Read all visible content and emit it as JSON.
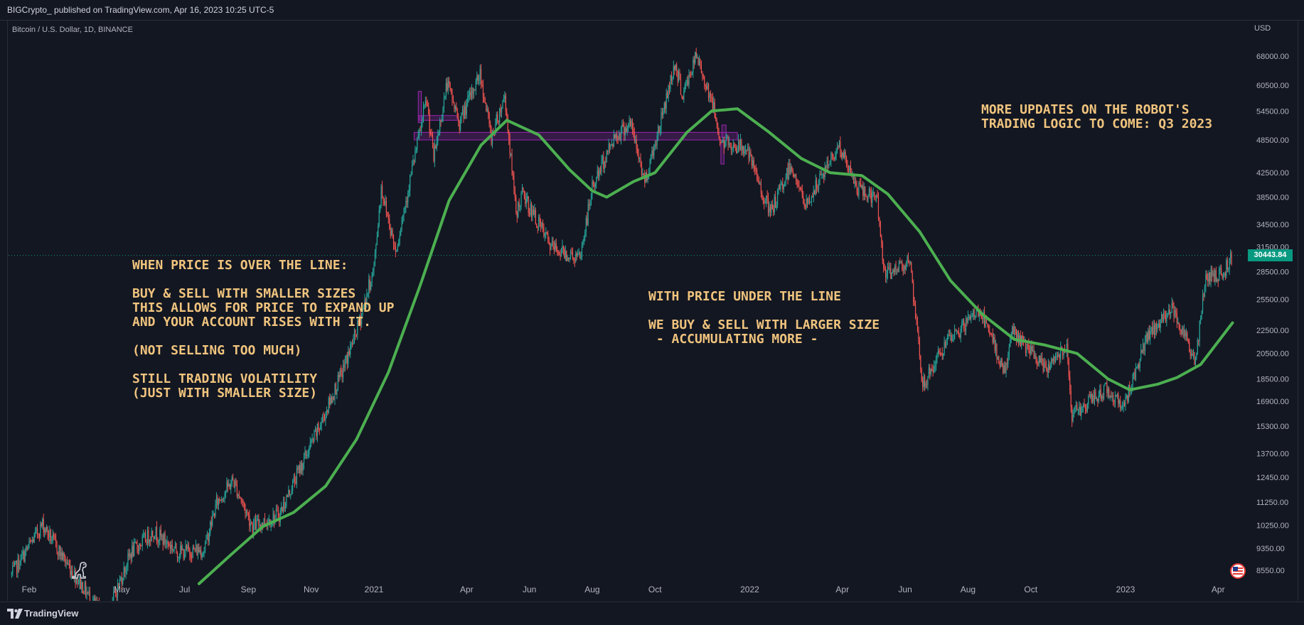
{
  "header": {
    "published_by": "BIGCrypto_ published on TradingView.com, Apr 16, 2023 10:25 UTC-5"
  },
  "chart_header": {
    "symbol": "Bitcoin / U.S. Dollar, 1D, BINANCE",
    "currency": "USD"
  },
  "footer": {
    "brand": "TradingView",
    "logo_icon": "tradingview-logo-icon"
  },
  "icons": {
    "bottom_left": "dinosaur-icon",
    "bottom_right": "us-flag-icon"
  },
  "annotations": {
    "left_box": "WHEN PRICE IS OVER THE LINE:\n\nBUY & SELL WITH SMALLER SIZES\nTHIS ALLOWS FOR PRICE TO EXPAND UP\nAND YOUR ACCOUNT RISES WITH IT.\n\n(NOT SELLING TOO MUCH)\n\nSTILL TRADING VOLATILITY\n(JUST WITH SMALLER SIZE)",
    "middle_box": "WITH PRICE UNDER THE LINE\n\nWE BUY & SELL WITH LARGER SIZE\n - ACCUMULATING MORE -",
    "right_box": "MORE UPDATES ON THE ROBOT'S\nTRADING LOGIC TO COME: Q3 2023"
  },
  "colors": {
    "background": "#131722",
    "up_candle": "#26a69a",
    "down_candle": "#ef5350",
    "moving_average": "#4caf50",
    "annotation_text": "#f0c47e",
    "zone_outline": "#9c27b0",
    "last_price_badge": "#089981"
  },
  "chart_data": {
    "type": "candlestick",
    "title": "Bitcoin / U.S. Dollar, 1D, BINANCE",
    "y_scale": "log",
    "ylim": [
      8000,
      72000
    ],
    "y_ticks": [
      68000,
      60500,
      54500,
      48500,
      42500,
      38500,
      34500,
      31500,
      28500,
      25500,
      22500,
      20500,
      18500,
      16900,
      15300,
      13700,
      12450,
      11250,
      10250,
      9350,
      8550
    ],
    "y_tick_labels": [
      "68000.00",
      "60500.00",
      "54500.00",
      "48500.00",
      "42500.00",
      "38500.00",
      "34500.00",
      "31500.00",
      "28500.00",
      "25500.00",
      "22500.00",
      "20500.00",
      "18500.00",
      "16900.00",
      "15300.00",
      "13700.00",
      "12450.00",
      "11250.00",
      "10250.00",
      "9350.00",
      "8550.00"
    ],
    "x_labels": [
      {
        "label": "Feb",
        "date": "2020-02-01"
      },
      {
        "label": "May",
        "date": "2020-05-01"
      },
      {
        "label": "Jul",
        "date": "2020-07-01"
      },
      {
        "label": "Sep",
        "date": "2020-09-01"
      },
      {
        "label": "Nov",
        "date": "2020-11-01"
      },
      {
        "label": "2021",
        "date": "2021-01-01"
      },
      {
        "label": "Apr",
        "date": "2021-04-01"
      },
      {
        "label": "Jun",
        "date": "2021-06-01"
      },
      {
        "label": "Aug",
        "date": "2021-08-01"
      },
      {
        "label": "Oct",
        "date": "2021-10-01"
      },
      {
        "label": "2022",
        "date": "2022-01-01"
      },
      {
        "label": "Apr",
        "date": "2022-04-01"
      },
      {
        "label": "Jun",
        "date": "2022-06-01"
      },
      {
        "label": "Aug",
        "date": "2022-08-01"
      },
      {
        "label": "Oct",
        "date": "2022-10-01"
      },
      {
        "label": "2023",
        "date": "2023-01-01"
      },
      {
        "label": "Apr",
        "date": "2023-04-01"
      }
    ],
    "last_price": 30443.84,
    "last_price_label": "30443.84",
    "price_path": [
      {
        "date": "2020-01-15",
        "price": 8400
      },
      {
        "date": "2020-02-14",
        "price": 10300
      },
      {
        "date": "2020-03-05",
        "price": 9000
      },
      {
        "date": "2020-04-15",
        "price": 7000
      },
      {
        "date": "2020-05-10",
        "price": 9200
      },
      {
        "date": "2020-06-01",
        "price": 10000
      },
      {
        "date": "2020-06-25",
        "price": 9200
      },
      {
        "date": "2020-07-20",
        "price": 9300
      },
      {
        "date": "2020-08-01",
        "price": 11200
      },
      {
        "date": "2020-08-17",
        "price": 12300
      },
      {
        "date": "2020-09-05",
        "price": 10200
      },
      {
        "date": "2020-10-01",
        "price": 10700
      },
      {
        "date": "2020-10-21",
        "price": 12900
      },
      {
        "date": "2020-11-10",
        "price": 15400
      },
      {
        "date": "2020-12-01",
        "price": 19000
      },
      {
        "date": "2020-12-17",
        "price": 23000
      },
      {
        "date": "2021-01-01",
        "price": 29000
      },
      {
        "date": "2021-01-08",
        "price": 40000
      },
      {
        "date": "2021-01-22",
        "price": 31000
      },
      {
        "date": "2021-02-08",
        "price": 44000
      },
      {
        "date": "2021-02-21",
        "price": 57000
      },
      {
        "date": "2021-02-28",
        "price": 45000
      },
      {
        "date": "2021-03-13",
        "price": 61000
      },
      {
        "date": "2021-03-25",
        "price": 52000
      },
      {
        "date": "2021-04-14",
        "price": 63500
      },
      {
        "date": "2021-04-25",
        "price": 49000
      },
      {
        "date": "2021-05-08",
        "price": 58000
      },
      {
        "date": "2021-05-19",
        "price": 36000
      },
      {
        "date": "2021-05-25",
        "price": 39000
      },
      {
        "date": "2021-06-22",
        "price": 31500
      },
      {
        "date": "2021-07-20",
        "price": 30000
      },
      {
        "date": "2021-08-01",
        "price": 40000
      },
      {
        "date": "2021-08-22",
        "price": 49000
      },
      {
        "date": "2021-09-07",
        "price": 52000
      },
      {
        "date": "2021-09-21",
        "price": 41000
      },
      {
        "date": "2021-10-05",
        "price": 51000
      },
      {
        "date": "2021-10-20",
        "price": 66000
      },
      {
        "date": "2021-10-28",
        "price": 58000
      },
      {
        "date": "2021-11-10",
        "price": 68000
      },
      {
        "date": "2021-11-25",
        "price": 57000
      },
      {
        "date": "2021-12-04",
        "price": 48000
      },
      {
        "date": "2021-12-28",
        "price": 47000
      },
      {
        "date": "2022-01-21",
        "price": 36000
      },
      {
        "date": "2022-02-10",
        "price": 44000
      },
      {
        "date": "2022-02-24",
        "price": 37000
      },
      {
        "date": "2022-03-28",
        "price": 47500
      },
      {
        "date": "2022-04-15",
        "price": 40000
      },
      {
        "date": "2022-05-05",
        "price": 38000
      },
      {
        "date": "2022-05-12",
        "price": 28000
      },
      {
        "date": "2022-06-05",
        "price": 30000
      },
      {
        "date": "2022-06-18",
        "price": 18000
      },
      {
        "date": "2022-07-08",
        "price": 21000
      },
      {
        "date": "2022-08-12",
        "price": 24500
      },
      {
        "date": "2022-09-06",
        "price": 19000
      },
      {
        "date": "2022-09-13",
        "price": 22500
      },
      {
        "date": "2022-10-15",
        "price": 19200
      },
      {
        "date": "2022-11-05",
        "price": 21300
      },
      {
        "date": "2022-11-10",
        "price": 16000
      },
      {
        "date": "2022-12-14",
        "price": 17800
      },
      {
        "date": "2022-12-30",
        "price": 16500
      },
      {
        "date": "2023-01-20",
        "price": 21500
      },
      {
        "date": "2023-02-16",
        "price": 24800
      },
      {
        "date": "2023-03-10",
        "price": 19800
      },
      {
        "date": "2023-03-20",
        "price": 28000
      },
      {
        "date": "2023-04-05",
        "price": 28200
      },
      {
        "date": "2023-04-15",
        "price": 30443
      }
    ],
    "moving_average": [
      {
        "date": "2020-07-15",
        "price": 8100
      },
      {
        "date": "2020-08-15",
        "price": 9100
      },
      {
        "date": "2020-09-15",
        "price": 10200
      },
      {
        "date": "2020-10-15",
        "price": 10800
      },
      {
        "date": "2020-11-15",
        "price": 12000
      },
      {
        "date": "2020-12-15",
        "price": 14500
      },
      {
        "date": "2021-01-15",
        "price": 19000
      },
      {
        "date": "2021-02-15",
        "price": 27000
      },
      {
        "date": "2021-03-15",
        "price": 38000
      },
      {
        "date": "2021-04-15",
        "price": 47500
      },
      {
        "date": "2021-05-10",
        "price": 52500
      },
      {
        "date": "2021-06-10",
        "price": 49500
      },
      {
        "date": "2021-07-10",
        "price": 43000
      },
      {
        "date": "2021-08-01",
        "price": 39500
      },
      {
        "date": "2021-08-15",
        "price": 38500
      },
      {
        "date": "2021-09-10",
        "price": 41000
      },
      {
        "date": "2021-10-01",
        "price": 42500
      },
      {
        "date": "2021-11-01",
        "price": 50000
      },
      {
        "date": "2021-11-25",
        "price": 54500
      },
      {
        "date": "2021-12-20",
        "price": 55000
      },
      {
        "date": "2022-01-20",
        "price": 50000
      },
      {
        "date": "2022-02-20",
        "price": 45000
      },
      {
        "date": "2022-03-20",
        "price": 42500
      },
      {
        "date": "2022-04-20",
        "price": 42000
      },
      {
        "date": "2022-05-15",
        "price": 39000
      },
      {
        "date": "2022-06-15",
        "price": 33500
      },
      {
        "date": "2022-07-15",
        "price": 27500
      },
      {
        "date": "2022-08-15",
        "price": 24000
      },
      {
        "date": "2022-09-15",
        "price": 21700
      },
      {
        "date": "2022-10-15",
        "price": 21200
      },
      {
        "date": "2022-11-15",
        "price": 20500
      },
      {
        "date": "2022-12-15",
        "price": 18500
      },
      {
        "date": "2023-01-05",
        "price": 17700
      },
      {
        "date": "2023-02-01",
        "price": 18100
      },
      {
        "date": "2023-02-20",
        "price": 18600
      },
      {
        "date": "2023-03-15",
        "price": 19600
      },
      {
        "date": "2023-04-15",
        "price": 23200
      }
    ],
    "zones": [
      {
        "from": "2021-02-09",
        "to": "2021-12-20",
        "low": 48500,
        "high": 50000
      },
      {
        "from": "2021-02-14",
        "to": "2021-03-23",
        "low": 52500,
        "high": 53500
      },
      {
        "from": "2021-12-05",
        "to": "2021-12-09",
        "low": 49000,
        "high": 51500
      },
      {
        "from": "2021-02-13",
        "to": "2021-02-16",
        "low": 52000,
        "high": 59000
      },
      {
        "from": "2021-12-04",
        "to": "2021-12-07",
        "low": 44000,
        "high": 48000
      }
    ]
  }
}
